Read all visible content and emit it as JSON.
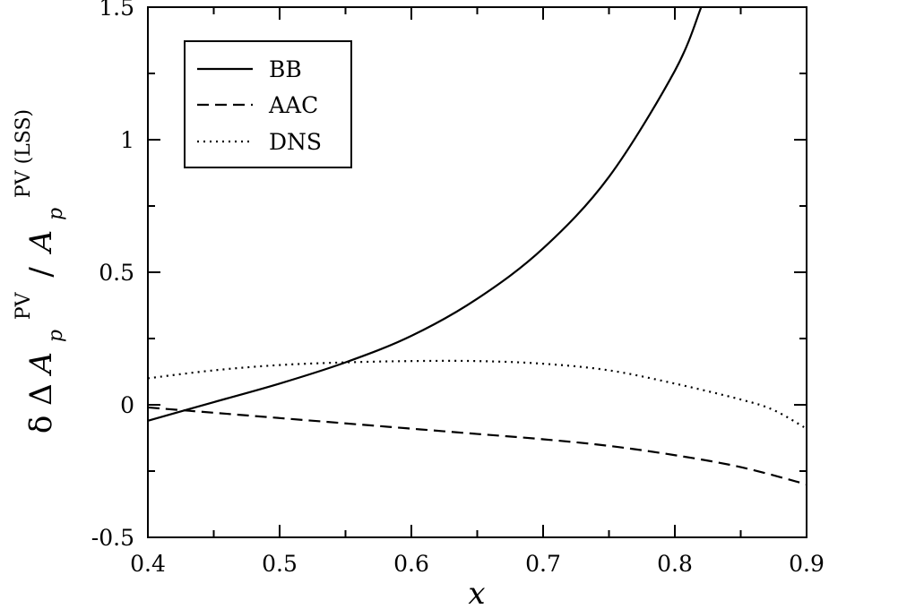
{
  "chart_data": {
    "type": "line",
    "title": "",
    "xlabel": "x",
    "ylabel": {
      "delta": "δ",
      "Delta": "Δ",
      "A": "A",
      "p_sub": "p",
      "pv_sup": "PV",
      "slash": "/",
      "pvlss_sup": "PV (LSS)"
    },
    "xlim": [
      0.4,
      0.9
    ],
    "ylim": [
      -0.5,
      1.5
    ],
    "xticks": [
      0.4,
      0.5,
      0.6,
      0.7,
      0.8,
      0.9
    ],
    "xtick_labels": [
      "0.4",
      "0.5",
      "0.6",
      "0.7",
      "0.8",
      "0.9"
    ],
    "yticks": [
      -0.5,
      0,
      0.5,
      1,
      1.5
    ],
    "ytick_labels": [
      "-0.5",
      "0",
      "0.5",
      "1",
      "1.5"
    ],
    "grid": false,
    "legend_position": "top-left",
    "series": [
      {
        "name": "BB",
        "style": "solid",
        "x": [
          0.4,
          0.45,
          0.5,
          0.55,
          0.6,
          0.65,
          0.7,
          0.75,
          0.8,
          0.82
        ],
        "y": [
          -0.06,
          0.01,
          0.08,
          0.16,
          0.26,
          0.4,
          0.59,
          0.86,
          1.26,
          1.5
        ]
      },
      {
        "name": "AAC",
        "style": "dashed",
        "x": [
          0.4,
          0.45,
          0.5,
          0.55,
          0.6,
          0.65,
          0.7,
          0.75,
          0.8,
          0.85,
          0.9
        ],
        "y": [
          -0.01,
          -0.03,
          -0.05,
          -0.07,
          -0.09,
          -0.11,
          -0.13,
          -0.155,
          -0.19,
          -0.235,
          -0.3
        ]
      },
      {
        "name": "DNS",
        "style": "dotted",
        "x": [
          0.4,
          0.45,
          0.5,
          0.55,
          0.6,
          0.65,
          0.7,
          0.75,
          0.8,
          0.85,
          0.875,
          0.9
        ],
        "y": [
          0.1,
          0.13,
          0.15,
          0.16,
          0.165,
          0.165,
          0.155,
          0.13,
          0.08,
          0.02,
          -0.02,
          -0.09
        ]
      }
    ]
  }
}
